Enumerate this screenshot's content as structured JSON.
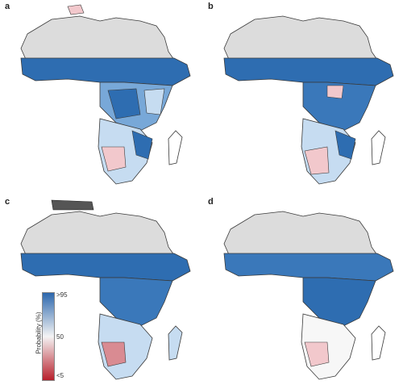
{
  "panels": [
    {
      "letter": "a"
    },
    {
      "letter": "b"
    },
    {
      "letter": "c"
    },
    {
      "letter": "d"
    }
  ],
  "legend": {
    "title": "Probability (%)",
    "ticks": [
      ">95",
      "50",
      "<5"
    ],
    "colors": {
      "high": "#2c67ad",
      "mid": "#f4f4f4",
      "low": "#b8202c"
    }
  },
  "colors": {
    "land_grey": "#dcdcdc",
    "border": "#3a3a3a",
    "blue_dark": "#2e6db1",
    "blue_mid": "#78a8d8",
    "blue_light": "#c6dcf1",
    "pink": "#f2c8cc",
    "red": "#d98b92"
  }
}
